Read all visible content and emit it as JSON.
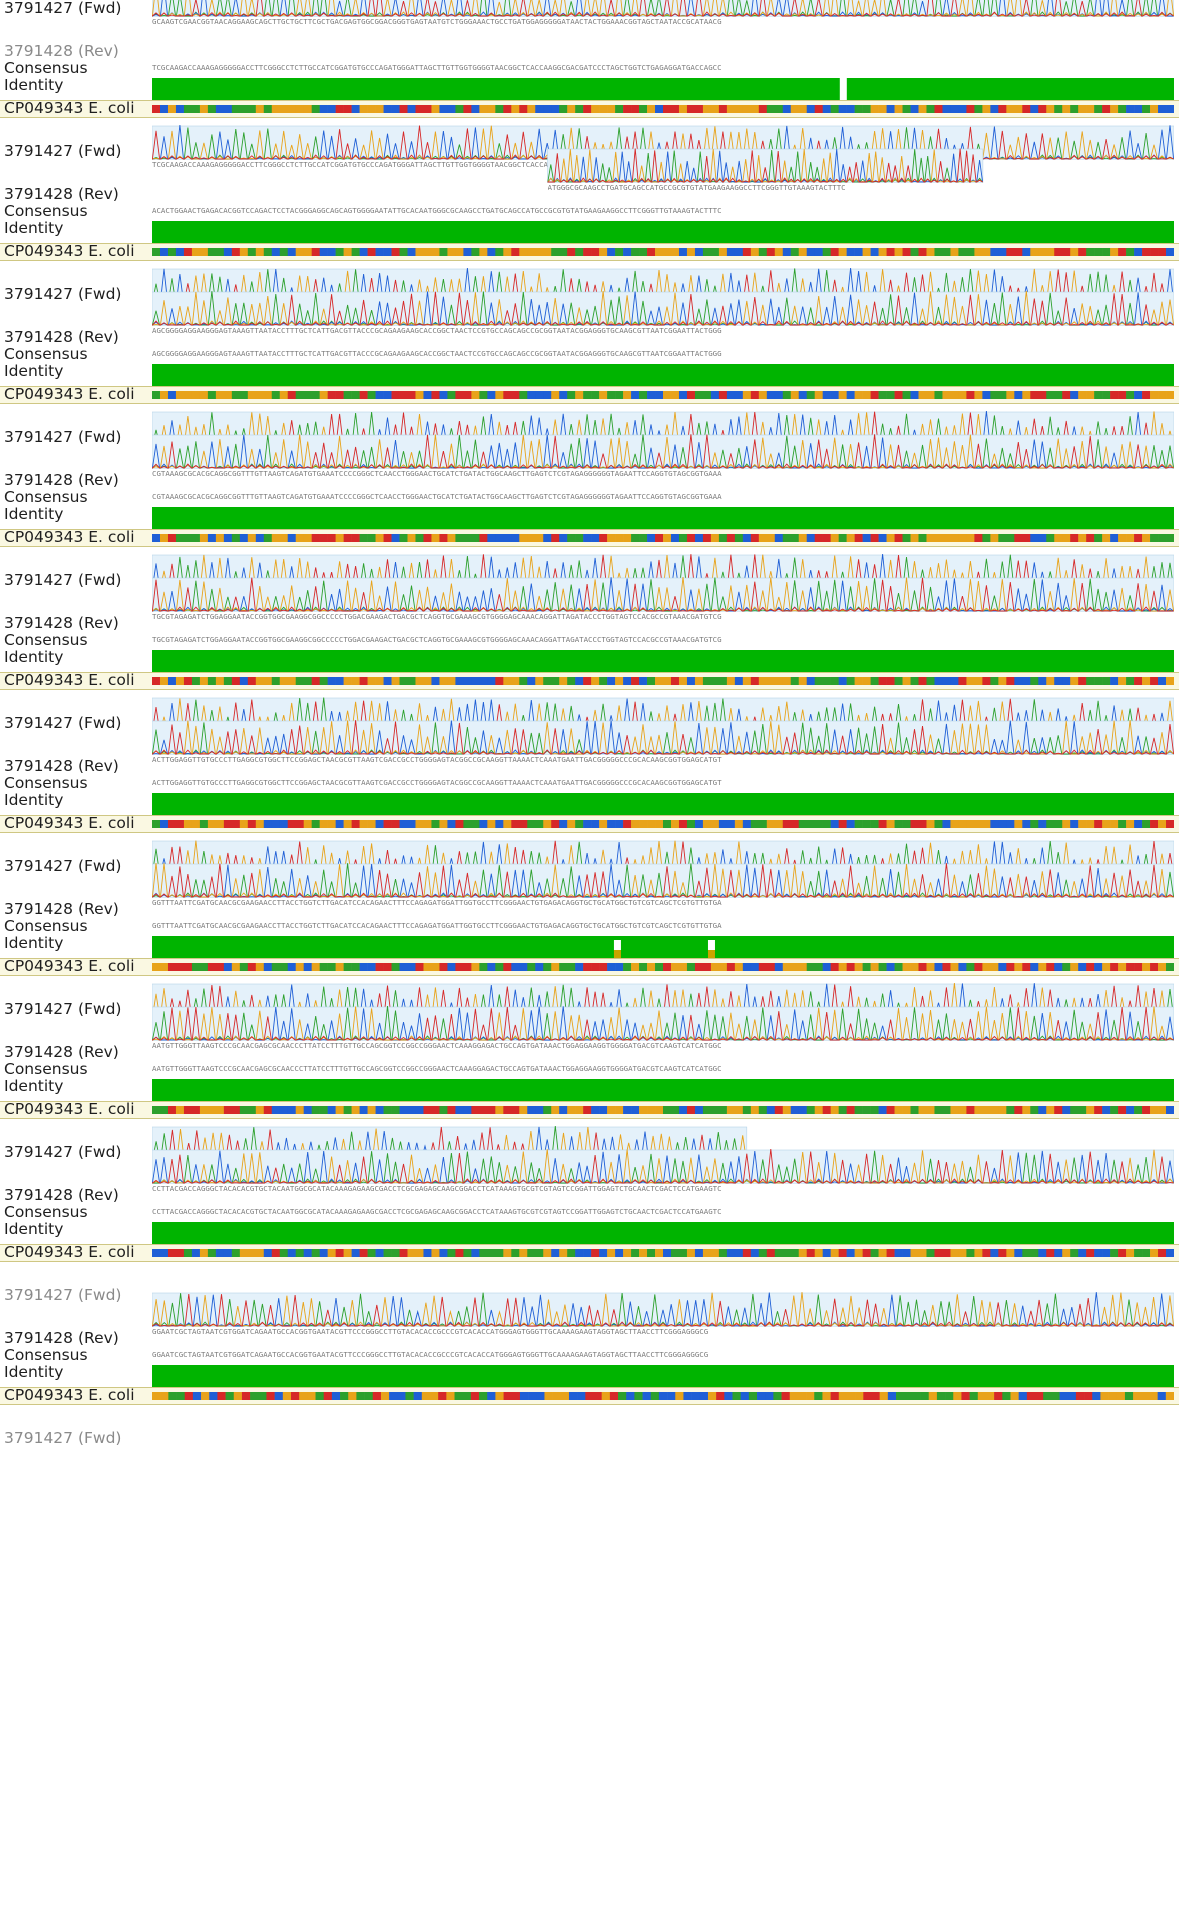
{
  "labels": {
    "consensus": "Consensus",
    "identity": "Identity",
    "reference": "CP049343 E. coli",
    "read_fwd": "3791427 (Fwd)",
    "read_rev": "3791428 (Rev)"
  },
  "colors": {
    "identity_full": "#00b400",
    "identity_mismatch_mark": "#c9a400",
    "identity_gap": "#ffffff",
    "base_A": "#2ca02c",
    "base_C": "#1f5fd6",
    "base_G": "#e8a31a",
    "base_T": "#d62828",
    "trace_area": "#e4f1fa",
    "reference_row_bg": "#faf8e2"
  },
  "blocks": [
    {
      "consensus_seq": "",
      "read_seq": "GCAAGTCGAACGGTAACAGGAAGCAGCTTGCTGCTTCGCTGACGAGTGGCGGACGGGTGAGTAATGTCTGGGAAACTGCCTGATGGAGGGGGATAACTACTGGAAACGGTAGCTAATACCGCATAACG",
      "identity": "full",
      "fwd_present": true,
      "rev_present": false,
      "rev_label_dim": true
    },
    {
      "consensus_seq": "TCGCAAGACCAAAGAGGGGGACCTTCGGGCCTCTTGCCATCGGATGTGCCCAGATGGGATTAGCTTGTTGGTGGGGTAACGGCTCACCAAGGCGACGATCCCTAGCTGGTCTGAGAGGATGACCAGCC",
      "read_seq": "TCGCAAGACCAAAGAGGGGGACCTTCGGGCCTCTTGCCATCGGATGTGCCCAGATGGGATTAGCTTGTTGGTGGGGTAACGGCTCACCAAGGCGACGATCCCTAGCTGGTCTGAGAGGATGACCAGCC",
      "identity": "gap",
      "fwd_present": true,
      "rev_present": false,
      "rev_label_dim": true
    },
    {
      "consensus_seq": "ACACTGGAACTGAGACACGGTCCAGACTCCTACGGGAGGCAGCAGTGGGGAATATTGCACAATGGGCGCAAGCCTGATGCAGCCATGCCGCGTGTATGAAGAAGGCCTTCGGGTTGTAAAGTACTTTC",
      "read_seq": "ACACTGGAACTGAGACACGGTCCAGACTCCTACGGGAGGCAGCAGTGGGGAATATTGCACAATGGGCGCAAGCCTGATGCAGCCATGCCGCGTGTATGAAGAAGGCCTTCGGGTTGTAAAGTACTTTC",
      "identity": "full",
      "fwd_present": true,
      "rev_present": "partial",
      "rev_seq": "ATGGGCGCAAGCCTGATGCAGCCATGCCGCGTGTATGAAGAAGGCCTTCGGGTTGTAAAGTACTTTC",
      "rev_label_dim": false
    },
    {
      "consensus_seq": "AGCGGGGAGGAAGGGAGTAAAGTTAATACCTTTGCTCATTGACGTTACCCGCAGAAGAAGCACCGGCTAACTCCGTGCCAGCAGCCGCGGTAATACGGAGGGTGCAAGCGTTAATCGGAATTACTGGG",
      "read_seq": "AGCGGGGAGGAAGGGAGTAAAGTTAATACCTTTGCTCATTGACGTTACCCGCAGAAGAAGCACCGGCTAACTCCGTGCCAGCAGCCGCGGTAATACGGAGGGTGCAAGCGTTAATCGGAATTACTGGG",
      "identity": "full",
      "fwd_present": true,
      "rev_present": true,
      "rev_label_dim": false
    },
    {
      "consensus_seq": "CGTAAAGCGCACGCAGGCGGTTTGTTAAGTCAGATGTGAAATCCCCGGGCTCAACCTGGGAACTGCATCTGATACTGGCAAGCTTGAGTCTCGTAGAGGGGGGTAGAATTCCAGGTGTAGCGGTGAAA",
      "read_seq": "CGTAAAGCGCACGCAGGCGGTTTGTTAAGTCAGATGTGAAATCCCCGGGCTCAACCTGGGAACTGCATCTGATACTGGCAAGCTTGAGTCTCGTAGAGGGGGGTAGAATTCCAGGTGTAGCGGTGAAA",
      "identity": "full",
      "fwd_present": true,
      "rev_present": true,
      "rev_label_dim": false
    },
    {
      "consensus_seq": "TGCGTAGAGATCTGGAGGAATACCGGTGGCGAAGGCGGCCCCCTGGACGAAGACTGACGCTCAGGTGCGAAAGCGTGGGGAGCAAACAGGATTAGATACCCTGGTAGTCCACGCCGTAAACGATGTCG",
      "read_seq": "TGCGTAGAGATCTGGAGGAATACCGGTGGCGAAGGCGGCCCCCTGGACGAAGACTGACGCTCAGGTGCGAAAGCGTGGGGAGCAAACAGGATTAGATACCCTGGTAGTCCACGCCGTAAACGATGTCG",
      "identity": "full",
      "fwd_present": true,
      "rev_present": true,
      "rev_label_dim": false
    },
    {
      "consensus_seq": "ACTTGGAGGTTGTGCCCTTGAGGCGTGGCTTCCGGAGCTAACGCGTTAAGTCGACCGCCTGGGGAGTACGGCCGCAAGGTTAAAACTCAAATGAATTGACGGGGGCCCGCACAAGCGGTGGAGCATGT",
      "read_seq": "ACTTGGAGGTTGTGCCCTTGAGGCGTGGCTTCCGGAGCTAACGCGTTAAGTCGACCGCCTGGGGAGTACGGCCGCAAGGTTAAAACTCAAATGAATTGACGGGGGCCCGCACAAGCGGTGGAGCATGT",
      "identity": "full",
      "fwd_present": true,
      "rev_present": true,
      "rev_label_dim": false
    },
    {
      "consensus_seq": "GGTTTAATTCGATGCAACGCGAAGAACCTTACCTGGTCTTGACATCCACAGAACTTTCCAGAGATGGATTGGTGCCTTCGGGAACTGTGAGACAGGTGCTGCATGGCTGTCGTCAGCTCGTGTTGTGA",
      "read_seq": "GGTTTAATTCGATGCAACGCGAAGAACCTTACCTGGTCTTGACATCCACAGAACTTTCCAGAGATGGATTGGTGCCTTCGGGAACTGTGAGACAGGTGCTGCATGGCTGTCGTCAGCTCGTGTTGTGA",
      "identity": "mismatch",
      "fwd_present": true,
      "rev_present": true,
      "rev_label_dim": false
    },
    {
      "consensus_seq": "AATGTTGGGTTAAGTCCCGCAACGAGCGCAACCCTTATCCTTTGTTGCCAGCGGTCCGGCCGGGAACTCAAAGGAGACTGCCAGTGATAAACTGGAGGAAGGTGGGGATGACGTCAAGTCATCATGGC",
      "read_seq": "AATGTTGGGTTAAGTCCCGCAACGAGCGCAACCCTTATCCTTTGTTGCCAGCGGTCCGGCCGGGAACTCAAAGGAGACTGCCAGTGATAAACTGGAGGAAGGTGGGGATGACGTCAAGTCATCATGGC",
      "fwd_seq": "AATGTTGGGTTAAGTCCCGCAACGAGCGCAACCCTTATCCTTTGTTGCCAGCGGTCCGGCCGGGAACTCAAAG",
      "identity": "full",
      "fwd_present": "partial",
      "rev_present": true,
      "rev_label_dim": false
    },
    {
      "consensus_seq": "CCTTACGACCAGGGCTACACACGTGCTACAATGGCGCATACAAAGAGAAGCGACCTCGCGAGAGCAAGCGGACCTCATAAAGTGCGTCGTAGTCCGGATTGGAGTCTGCAACTCGACTCCATGAAGTC",
      "read_seq": "CCTTACGACCAGGGCTACACACGTGCTACAATGGCGCATACAAAGAGAAGCGACCTCGCGAGAGCAAGCGGACCTCATAAAGTGCGTCGTAGTCCGGATTGGAGTCTGCAACTCGACTCCATGAAGTC",
      "identity": "full",
      "fwd_present": false,
      "rev_present": true,
      "rev_label_dim": false,
      "fwd_label_dim": true
    },
    {
      "consensus_seq": "GGAATCGCTAGTAATCGTGGATCAGAATGCCACGGTGAATACGTTCCCGGGCCTTGTACACACCGCCCGTCACACCATGGGAGTGGGTTGCAAAAGAAGTAGGTAGCTTAACCTTCGGGAGGGCG",
      "read_seq": "GGAATCGCTAGTAATCGTGGATCAGAATGCCACGGTGAATACGTTCCCGGGCCTTGTACACACCGCCCGTCACACCATGGGAGTGGGTTGCAAAAGAAGTAGGTAGCTTAACCTTCGGGAGGGCG",
      "identity": "full",
      "fwd_present": false,
      "rev_present": true,
      "rev_label_dim": false,
      "fwd_label_dim": true
    }
  ]
}
